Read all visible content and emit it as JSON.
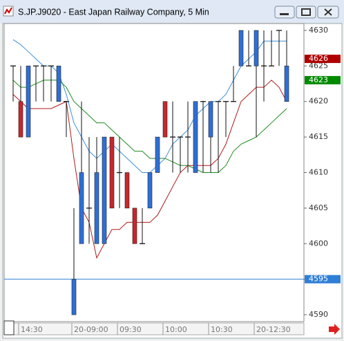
{
  "chart_data": {
    "type": "candlestick",
    "title": "S.JP.J9020 - East Japan Railway Company, 5 Min",
    "categories": [
      null,
      "14:30",
      null,
      null,
      null,
      null,
      null,
      null,
      "20-09:00",
      null,
      null,
      null,
      null,
      null,
      "09:30",
      null,
      null,
      null,
      null,
      null,
      "10:00",
      null,
      null,
      null,
      null,
      null,
      "10:30",
      null,
      null,
      null,
      null,
      null,
      "20-12:30",
      null,
      null,
      null,
      null
    ],
    "open": [
      4625,
      4620,
      4615,
      4625,
      4625,
      4625,
      4620,
      4620,
      4590,
      4600,
      4605,
      4600,
      4600,
      4615,
      4610,
      4610,
      4605,
      4600,
      4605,
      4610,
      4620,
      4615,
      4615,
      4615,
      4610,
      4620,
      4615,
      4620,
      4620,
      4620,
      4625,
      4625,
      4625,
      4625,
      4625,
      4630,
      4620
    ],
    "high": [
      4625,
      4625,
      4625,
      4625,
      4625,
      4625,
      4625,
      4620,
      4605,
      4620,
      4615,
      4615,
      4615,
      4615,
      4615,
      4610,
      4605,
      4605,
      4610,
      4615,
      4620,
      4620,
      4615,
      4620,
      4620,
      4620,
      4620,
      4620,
      4620,
      4625,
      4630,
      4630,
      4630,
      4630,
      4630,
      4630,
      4630
    ],
    "low": [
      4620,
      4615,
      4615,
      4620,
      4620,
      4620,
      4620,
      4615,
      4590,
      4600,
      4600,
      4600,
      4600,
      4605,
      4605,
      4605,
      4600,
      4600,
      4605,
      4610,
      4615,
      4610,
      4610,
      4610,
      4610,
      4610,
      4610,
      4610,
      4615,
      4620,
      4625,
      4625,
      4615,
      4620,
      4625,
      4625,
      4620
    ],
    "close": [
      4625,
      4615,
      4625,
      4625,
      4625,
      4625,
      4625,
      4620,
      4595,
      4610,
      4605,
      4610,
      4615,
      4605,
      4610,
      4605,
      4600,
      4600,
      4610,
      4615,
      4615,
      4615,
      4615,
      4615,
      4620,
      4620,
      4620,
      4620,
      4620,
      4620,
      4630,
      4625,
      4630,
      4625,
      4625,
      4630,
      4625
    ],
    "up_color": "#2f6fd6",
    "down_color": "#c8262b",
    "series": [
      {
        "color": "#3d8fd8",
        "values": [
          4628.7,
          4628,
          4627,
          4626,
          4625,
          4625,
          4624,
          4621,
          4617,
          4615,
          4613,
          4612,
          4613,
          4614,
          4613,
          4612,
          4611,
          4610,
          4610,
          4611,
          4612,
          4614,
          4615,
          4616,
          4618,
          4619,
          4620,
          4620,
          4621,
          4623,
          4625,
          4626,
          4627,
          4628.5,
          4628.5,
          4628.5,
          4628.5
        ]
      },
      {
        "color": "#b01818",
        "values": [
          4621,
          4620,
          4619,
          4619,
          4619,
          4619,
          4619.5,
          4620,
          4612,
          4605,
          4603,
          4598,
          4600,
          4602,
          4602,
          4603,
          4603,
          4603,
          4603,
          4604,
          4606,
          4608,
          4610,
          4611,
          4611,
          4611,
          4611,
          4612,
          4614,
          4617,
          4620,
          4621,
          4622,
          4622,
          4623,
          4622,
          4620
        ]
      },
      {
        "color": "#1e8a1e",
        "values": [
          4623,
          4622,
          4622,
          4622.5,
          4623,
          4623,
          4623,
          4622,
          4620,
          4619,
          4618,
          4617,
          4617,
          4616,
          4615,
          4614,
          4613,
          4613,
          4612,
          4612,
          4612,
          4611.5,
          4611,
          4611,
          4610.5,
          4610,
          4610,
          4610,
          4611,
          4613,
          4614,
          4614.5,
          4615,
          4616,
          4617,
          4618,
          4619
        ]
      }
    ],
    "hline": {
      "value": 4595,
      "color": "#2f7fd6"
    },
    "markers": [
      {
        "value": 4626,
        "color": "#b00000"
      },
      {
        "value": 4623,
        "color": "#008a00"
      }
    ],
    "ylim": [
      4589,
      4631
    ],
    "yticks": [
      4590,
      4595,
      4600,
      4605,
      4610,
      4615,
      4620,
      4625,
      4630
    ]
  }
}
